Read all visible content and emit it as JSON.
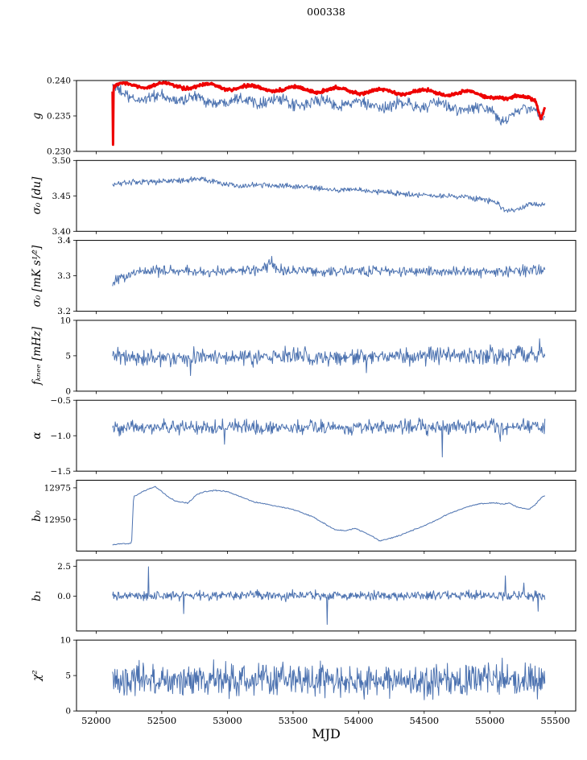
{
  "title": "000338",
  "xlabel": "MJD",
  "x_ticks": [
    52000,
    52500,
    53000,
    53500,
    54000,
    54500,
    55000,
    55500
  ],
  "x_tick_labels": [
    "52000",
    "52500",
    "53000",
    "53500",
    "54000",
    "54500",
    "55000",
    "55500"
  ],
  "x_range": [
    51850,
    55655
  ],
  "data_x_span": [
    52125,
    55420
  ],
  "colors": {
    "line": "#4c72b0",
    "accent": "#ee0000",
    "axis": "#000000"
  },
  "chart_data": [
    {
      "name": "g",
      "type": "line",
      "ylabel": "g",
      "ylim": [
        0.23,
        0.24
      ],
      "yticks": [
        0.23,
        0.235,
        0.24
      ],
      "ytick_labels": [
        "0.230",
        "0.235",
        "0.240"
      ],
      "series": [
        {
          "name": "g-raw",
          "color": "#4c72b0",
          "width": 1,
          "n": 700,
          "noise": 0.00045,
          "wiggle": {
            "amp": 0.0004,
            "period": 310,
            "phase": 1.2
          },
          "trend": [
            [
              52125,
              0.239
            ],
            [
              52160,
              0.2384
            ],
            [
              52250,
              0.2378
            ],
            [
              52400,
              0.2374
            ],
            [
              52600,
              0.2376
            ],
            [
              52800,
              0.2372
            ],
            [
              53000,
              0.2371
            ],
            [
              53200,
              0.2374
            ],
            [
              53400,
              0.2369
            ],
            [
              53600,
              0.2367
            ],
            [
              53800,
              0.237
            ],
            [
              54000,
              0.2366
            ],
            [
              54200,
              0.2363
            ],
            [
              54400,
              0.2367
            ],
            [
              54600,
              0.2364
            ],
            [
              54800,
              0.2361
            ],
            [
              55000,
              0.2357
            ],
            [
              55080,
              0.2347
            ],
            [
              55150,
              0.235
            ],
            [
              55250,
              0.2356
            ],
            [
              55350,
              0.2359
            ],
            [
              55420,
              0.2352
            ]
          ]
        },
        {
          "name": "g-smoothed",
          "color": "#ee0000",
          "width": 3,
          "n": 900,
          "noise": 0.00012,
          "wiggle": {
            "amp": 0.00035,
            "period": 330,
            "phase": 0.3
          },
          "trend": [
            [
              52125,
              0.2385
            ],
            [
              52129,
              0.2301
            ],
            [
              52133,
              0.2399
            ],
            [
              52137,
              0.2388
            ],
            [
              52150,
              0.2392
            ],
            [
              52250,
              0.2394
            ],
            [
              52500,
              0.2393
            ],
            [
              52800,
              0.2392
            ],
            [
              53100,
              0.239
            ],
            [
              53400,
              0.2388
            ],
            [
              53700,
              0.2387
            ],
            [
              54000,
              0.2385
            ],
            [
              54300,
              0.2384
            ],
            [
              54600,
              0.2383
            ],
            [
              54900,
              0.2381
            ],
            [
              55050,
              0.2378
            ],
            [
              55130,
              0.2371
            ],
            [
              55220,
              0.2377
            ],
            [
              55300,
              0.2379
            ],
            [
              55350,
              0.2374
            ],
            [
              55390,
              0.2346
            ],
            [
              55420,
              0.2362
            ]
          ]
        }
      ]
    },
    {
      "name": "sigma0-du",
      "type": "line",
      "ylabel": "σ₀ [du]",
      "ylim": [
        3.4,
        3.5
      ],
      "yticks": [
        3.4,
        3.45,
        3.5
      ],
      "ytick_labels": [
        "3.40",
        "3.45",
        "3.50"
      ],
      "series": [
        {
          "name": "sigma0-du",
          "color": "#4c72b0",
          "width": 1,
          "n": 650,
          "noise": 0.0022,
          "trend": [
            [
              52130,
              3.467
            ],
            [
              52250,
              3.469
            ],
            [
              52450,
              3.47
            ],
            [
              52650,
              3.472
            ],
            [
              52800,
              3.474
            ],
            [
              52950,
              3.468
            ],
            [
              53100,
              3.463
            ],
            [
              53250,
              3.466
            ],
            [
              53400,
              3.465
            ],
            [
              53600,
              3.463
            ],
            [
              53800,
              3.458
            ],
            [
              54000,
              3.459
            ],
            [
              54200,
              3.455
            ],
            [
              54400,
              3.452
            ],
            [
              54600,
              3.45
            ],
            [
              54800,
              3.448
            ],
            [
              54950,
              3.445
            ],
            [
              55060,
              3.439
            ],
            [
              55130,
              3.428
            ],
            [
              55210,
              3.432
            ],
            [
              55320,
              3.438
            ],
            [
              55420,
              3.437
            ]
          ]
        }
      ]
    },
    {
      "name": "sigma0-mk",
      "type": "line",
      "ylabel": "σ₀ [mK s¹⁄²]",
      "ylim": [
        3.2,
        3.4
      ],
      "yticks": [
        3.2,
        3.3,
        3.4
      ],
      "ytick_labels": [
        "3.2",
        "3.3",
        "3.4"
      ],
      "series": [
        {
          "name": "sigma0-mk",
          "color": "#4c72b0",
          "width": 1,
          "n": 650,
          "noise": 0.008,
          "spikes": [
            [
              53340,
              3.355
            ]
          ],
          "trend": [
            [
              52130,
              3.283
            ],
            [
              52200,
              3.298
            ],
            [
              52350,
              3.312
            ],
            [
              52600,
              3.311
            ],
            [
              52900,
              3.312
            ],
            [
              53200,
              3.316
            ],
            [
              53330,
              3.33
            ],
            [
              53420,
              3.315
            ],
            [
              53700,
              3.311
            ],
            [
              54000,
              3.315
            ],
            [
              54300,
              3.312
            ],
            [
              54600,
              3.313
            ],
            [
              54900,
              3.311
            ],
            [
              55100,
              3.313
            ],
            [
              55300,
              3.316
            ],
            [
              55420,
              3.317
            ]
          ]
        }
      ]
    },
    {
      "name": "fknee",
      "type": "line",
      "ylabel": "fₖₙₑₑ [mHz]",
      "ylim": [
        0,
        10
      ],
      "yticks": [
        0,
        5,
        10
      ],
      "ytick_labels": [
        "0",
        "5",
        "10"
      ],
      "series": [
        {
          "name": "fknee",
          "color": "#4c72b0",
          "width": 1,
          "n": 650,
          "noise": 0.65,
          "spikes": [
            [
              52720,
              2.2
            ],
            [
              54060,
              2.6
            ],
            [
              55380,
              7.4
            ]
          ],
          "trend": [
            [
              52130,
              4.7
            ],
            [
              52800,
              4.8
            ],
            [
              53600,
              4.85
            ],
            [
              54400,
              4.95
            ],
            [
              55000,
              5.05
            ],
            [
              55420,
              5.3
            ]
          ]
        }
      ]
    },
    {
      "name": "alpha",
      "type": "line",
      "ylabel": "α",
      "ylim": [
        -1.5,
        -0.5
      ],
      "yticks": [
        -1.5,
        -1.0,
        -0.5
      ],
      "ytick_labels": [
        "−1.5",
        "−1.0",
        "−0.5"
      ],
      "series": [
        {
          "name": "alpha",
          "color": "#4c72b0",
          "width": 1,
          "n": 650,
          "noise": 0.055,
          "spikes": [
            [
              52980,
              -1.12
            ],
            [
              54640,
              -1.3
            ],
            [
              55080,
              -1.08
            ]
          ],
          "trend": [
            [
              52130,
              -0.885
            ],
            [
              53000,
              -0.878
            ],
            [
              54000,
              -0.882
            ],
            [
              55420,
              -0.868
            ]
          ]
        }
      ]
    },
    {
      "name": "b0",
      "type": "line",
      "ylabel": "b₀",
      "ylim": [
        12925,
        12981
      ],
      "yticks": [
        12950,
        12975
      ],
      "ytick_labels": [
        "12950",
        "12975"
      ],
      "series": [
        {
          "name": "b0",
          "color": "#4c72b0",
          "width": 1,
          "n": 520,
          "noise": 0.25,
          "trend": [
            [
              52130,
              12930
            ],
            [
              52200,
              12931
            ],
            [
              52270,
              12931
            ],
            [
              52285,
              12968
            ],
            [
              52320,
              12970
            ],
            [
              52400,
              12974
            ],
            [
              52450,
              12976
            ],
            [
              52500,
              12972
            ],
            [
              52560,
              12967
            ],
            [
              52620,
              12964
            ],
            [
              52700,
              12963
            ],
            [
              52760,
              12969
            ],
            [
              52820,
              12972
            ],
            [
              52900,
              12973
            ],
            [
              53000,
              12972
            ],
            [
              53100,
              12968
            ],
            [
              53200,
              12964
            ],
            [
              53350,
              12961
            ],
            [
              53500,
              12958
            ],
            [
              53650,
              12952
            ],
            [
              53750,
              12946
            ],
            [
              53820,
              12942
            ],
            [
              53900,
              12941
            ],
            [
              53970,
              12943
            ],
            [
              54040,
              12940
            ],
            [
              54100,
              12937
            ],
            [
              54160,
              12933
            ],
            [
              54200,
              12934
            ],
            [
              54300,
              12937
            ],
            [
              54400,
              12941
            ],
            [
              54500,
              12945
            ],
            [
              54600,
              12950
            ],
            [
              54700,
              12955
            ],
            [
              54800,
              12959
            ],
            [
              54900,
              12962
            ],
            [
              55000,
              12963
            ],
            [
              55050,
              12963
            ],
            [
              55100,
              12962
            ],
            [
              55150,
              12963
            ],
            [
              55200,
              12960
            ],
            [
              55250,
              12959
            ],
            [
              55300,
              12958
            ],
            [
              55350,
              12962
            ],
            [
              55400,
              12968
            ],
            [
              55420,
              12969
            ]
          ]
        }
      ]
    },
    {
      "name": "b1",
      "type": "line",
      "ylabel": "b₁",
      "ylim": [
        -2.9,
        3.0
      ],
      "yticks": [
        0.0,
        2.5
      ],
      "ytick_labels": [
        "0.0",
        "2.5"
      ],
      "series": [
        {
          "name": "b1",
          "color": "#4c72b0",
          "width": 1,
          "n": 700,
          "noise": 0.21,
          "spikes": [
            [
              52400,
              2.45
            ],
            [
              52665,
              -1.45
            ],
            [
              53760,
              -2.35
            ],
            [
              55120,
              1.7
            ],
            [
              55260,
              1.1
            ],
            [
              55370,
              -1.25
            ]
          ],
          "trend": [
            [
              52130,
              0.05
            ],
            [
              55420,
              0.05
            ]
          ]
        }
      ]
    },
    {
      "name": "chi2",
      "type": "line",
      "ylabel": "χ²",
      "ylim": [
        0,
        10
      ],
      "yticks": [
        0,
        5,
        10
      ],
      "ytick_labels": [
        "0",
        "5",
        "10"
      ],
      "series": [
        {
          "name": "chi2",
          "color": "#4c72b0",
          "width": 1,
          "n": 750,
          "noise": 1.25,
          "trend": [
            [
              52130,
              4.2
            ],
            [
              53000,
              4.35
            ],
            [
              54000,
              4.3
            ],
            [
              55420,
              4.45
            ]
          ]
        }
      ]
    }
  ]
}
